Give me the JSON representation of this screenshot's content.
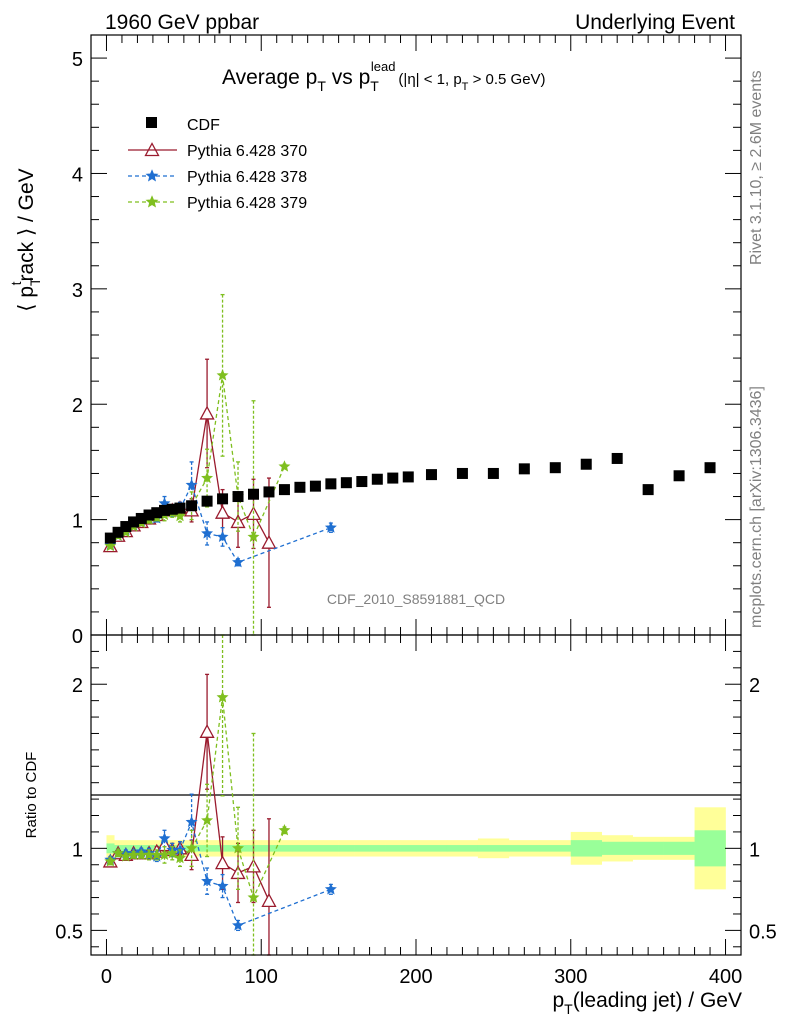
{
  "header": {
    "left": "1960 GeV ppbar",
    "right": "Underlying Event"
  },
  "side": {
    "rivet": "Rivet 3.1.10, ≥ 2.6M events",
    "mcplots": "mcplots.cern.ch [arXiv:1306.3436]"
  },
  "watermark": "CDF_2010_S8591881_QCD",
  "colors": {
    "cdf": "#000000",
    "p370": "#9a1b2e",
    "p378": "#1f6fd1",
    "p379": "#7fbf1f",
    "band_outer": "#ffff99",
    "band_inner": "#99ff99"
  },
  "chart_data": [
    {
      "type": "scatter",
      "title": "Average p_T vs p_T^lead (|η| < 1, p_T > 0.5 GeV)",
      "title_parts": {
        "pre": "Average p",
        "sub1": "T",
        "mid": " vs p",
        "sub2": "T",
        "sup2": "lead",
        "post_a": "(|η| < 1, p",
        "sub3": "T",
        "post_b": " > 0.5 GeV)"
      },
      "ylabel": "⟨ p_T^t rack ⟩ / GeV",
      "ylabel_parts": {
        "pre": "⟨ p",
        "sub": "T",
        "sup": "t",
        "post": "rack ⟩ / GeV"
      },
      "xlim": [
        -10,
        410
      ],
      "ylim": [
        0,
        5.2
      ],
      "yticks": [
        0,
        1,
        2,
        3,
        4,
        5
      ],
      "legend_position": "top-left",
      "series": [
        {
          "name": "CDF",
          "key": "cdf",
          "marker": "square",
          "x": [
            2.5,
            7.5,
            12.5,
            17.5,
            22.5,
            27.5,
            32.5,
            37.5,
            42.5,
            47.5,
            55,
            65,
            75,
            85,
            95,
            105,
            115,
            125,
            135,
            145,
            155,
            165,
            175,
            185,
            195,
            210,
            230,
            250,
            270,
            290,
            310,
            330,
            350,
            370,
            390
          ],
          "y": [
            0.84,
            0.89,
            0.94,
            0.98,
            1.01,
            1.04,
            1.06,
            1.08,
            1.09,
            1.1,
            1.12,
            1.16,
            1.18,
            1.2,
            1.22,
            1.24,
            1.26,
            1.28,
            1.29,
            1.31,
            1.32,
            1.33,
            1.35,
            1.36,
            1.37,
            1.39,
            1.4,
            1.4,
            1.44,
            1.45,
            1.48,
            1.53,
            1.26,
            1.38,
            1.45
          ]
        },
        {
          "name": "Pythia 6.428 370",
          "key": "p370",
          "marker": "triangle-open",
          "dashed": false,
          "x": [
            2.5,
            7.5,
            12.5,
            17.5,
            22.5,
            27.5,
            32.5,
            37.5,
            42.5,
            47.5,
            55,
            65,
            75,
            85,
            95,
            105
          ],
          "y": [
            0.77,
            0.86,
            0.9,
            0.95,
            0.98,
            1.01,
            1.04,
            1.1,
            1.08,
            1.1,
            1.08,
            1.92,
            1.06,
            0.98,
            1.05,
            0.8
          ],
          "err": [
            0.02,
            0.02,
            0.02,
            0.02,
            0.02,
            0.03,
            0.03,
            0.05,
            0.04,
            0.05,
            0.1,
            0.47,
            0.2,
            0.22,
            0.3,
            0.56
          ]
        },
        {
          "name": "Pythia 6.428 378",
          "key": "p378",
          "marker": "star",
          "dashed": true,
          "x": [
            2.5,
            7.5,
            12.5,
            17.5,
            22.5,
            27.5,
            32.5,
            37.5,
            42.5,
            47.5,
            55,
            65,
            75,
            85,
            145
          ],
          "y": [
            0.78,
            0.86,
            0.91,
            0.95,
            0.99,
            1.01,
            1.01,
            1.14,
            1.08,
            1.09,
            1.3,
            0.88,
            0.85,
            0.63,
            0.93
          ],
          "err": [
            0.02,
            0.02,
            0.02,
            0.02,
            0.02,
            0.03,
            0.03,
            0.06,
            0.05,
            0.06,
            0.2,
            0.1,
            0.08,
            0.03,
            0.04
          ]
        },
        {
          "name": "Pythia 6.428 379",
          "key": "p379",
          "marker": "star",
          "dashed": true,
          "x": [
            2.5,
            7.5,
            12.5,
            17.5,
            22.5,
            27.5,
            32.5,
            37.5,
            42.5,
            47.5,
            55,
            65,
            75,
            85,
            95,
            115
          ],
          "y": [
            0.77,
            0.86,
            0.89,
            0.94,
            0.97,
            1.0,
            1.02,
            1.04,
            1.06,
            1.03,
            1.12,
            1.36,
            2.25,
            1.2,
            0.85,
            1.46
          ],
          "err": [
            0.02,
            0.02,
            0.02,
            0.02,
            0.02,
            0.03,
            0.03,
            0.05,
            0.04,
            0.05,
            0.12,
            0.25,
            0.7,
            0.3,
            1.18,
            0.02
          ]
        }
      ]
    },
    {
      "type": "scatter",
      "xlabel": "p_T(leading jet) / GeV",
      "xlabel_parts": {
        "pre": "p",
        "sub": "T",
        "post": "(leading jet) / GeV"
      },
      "ylabel": "Ratio to CDF",
      "xlim": [
        -10,
        410
      ],
      "ylim": [
        0.35,
        2.3
      ],
      "xticks": [
        0,
        100,
        200,
        300,
        400
      ],
      "yticks": [
        0.5,
        1,
        2
      ],
      "bands": {
        "edges": [
          0,
          5,
          10,
          15,
          20,
          25,
          30,
          35,
          40,
          45,
          50,
          60,
          70,
          80,
          90,
          100,
          110,
          120,
          130,
          140,
          150,
          160,
          170,
          180,
          190,
          200,
          220,
          240,
          260,
          280,
          300,
          320,
          340,
          360,
          380,
          400
        ],
        "outer_lo": [
          0.92,
          0.95,
          0.95,
          0.95,
          0.95,
          0.95,
          0.95,
          0.95,
          0.95,
          0.95,
          0.95,
          0.95,
          0.95,
          0.95,
          0.95,
          0.95,
          0.95,
          0.95,
          0.95,
          0.95,
          0.95,
          0.95,
          0.95,
          0.95,
          0.95,
          0.95,
          0.95,
          0.94,
          0.95,
          0.95,
          0.9,
          0.92,
          0.93,
          0.93,
          0.75
        ],
        "outer_hi": [
          1.08,
          1.05,
          1.05,
          1.05,
          1.05,
          1.05,
          1.05,
          1.05,
          1.05,
          1.05,
          1.05,
          1.05,
          1.05,
          1.05,
          1.05,
          1.05,
          1.05,
          1.05,
          1.05,
          1.05,
          1.05,
          1.05,
          1.05,
          1.05,
          1.05,
          1.05,
          1.05,
          1.06,
          1.05,
          1.05,
          1.1,
          1.08,
          1.07,
          1.07,
          1.25
        ],
        "inner_lo": [
          0.97,
          0.98,
          0.98,
          0.98,
          0.98,
          0.98,
          0.98,
          0.98,
          0.98,
          0.98,
          0.98,
          0.98,
          0.98,
          0.98,
          0.98,
          0.98,
          0.98,
          0.98,
          0.98,
          0.98,
          0.98,
          0.98,
          0.98,
          0.98,
          0.98,
          0.98,
          0.98,
          0.98,
          0.98,
          0.98,
          0.95,
          0.96,
          0.96,
          0.96,
          0.89
        ],
        "inner_hi": [
          1.03,
          1.02,
          1.02,
          1.02,
          1.02,
          1.02,
          1.02,
          1.02,
          1.02,
          1.02,
          1.02,
          1.02,
          1.02,
          1.02,
          1.02,
          1.02,
          1.02,
          1.02,
          1.02,
          1.02,
          1.02,
          1.02,
          1.02,
          1.02,
          1.02,
          1.02,
          1.02,
          1.02,
          1.02,
          1.02,
          1.05,
          1.04,
          1.04,
          1.04,
          1.11
        ]
      },
      "series": [
        {
          "name": "Pythia 6.428 370",
          "key": "p370",
          "x": [
            2.5,
            7.5,
            12.5,
            17.5,
            22.5,
            27.5,
            32.5,
            37.5,
            42.5,
            47.5,
            55,
            65,
            75,
            85,
            95,
            105
          ],
          "y": [
            0.92,
            0.97,
            0.96,
            0.97,
            0.97,
            0.97,
            0.98,
            1.02,
            0.99,
            1.0,
            0.96,
            1.71,
            0.91,
            0.85,
            0.89,
            0.68
          ],
          "err": [
            0.02,
            0.02,
            0.02,
            0.02,
            0.02,
            0.03,
            0.03,
            0.04,
            0.04,
            0.04,
            0.09,
            0.35,
            0.16,
            0.18,
            0.22,
            0.5
          ]
        },
        {
          "name": "Pythia 6.428 378",
          "key": "p378",
          "x": [
            2.5,
            7.5,
            12.5,
            17.5,
            22.5,
            27.5,
            32.5,
            37.5,
            42.5,
            47.5,
            55,
            65,
            75,
            85,
            145
          ],
          "y": [
            0.93,
            0.97,
            0.97,
            0.97,
            0.98,
            0.97,
            0.95,
            1.06,
            0.99,
            0.99,
            1.16,
            0.8,
            0.77,
            0.53,
            0.75
          ],
          "err": [
            0.02,
            0.02,
            0.02,
            0.02,
            0.02,
            0.03,
            0.03,
            0.05,
            0.04,
            0.05,
            0.17,
            0.08,
            0.07,
            0.03,
            0.03
          ]
        },
        {
          "name": "Pythia 6.428 379",
          "key": "p379",
          "x": [
            2.5,
            7.5,
            12.5,
            17.5,
            22.5,
            27.5,
            32.5,
            37.5,
            42.5,
            47.5,
            55,
            65,
            75,
            85,
            95,
            115
          ],
          "y": [
            0.92,
            0.97,
            0.95,
            0.96,
            0.96,
            0.96,
            0.96,
            0.96,
            0.97,
            0.94,
            1.0,
            1.17,
            1.92,
            1.0,
            0.7,
            1.11
          ],
          "err": [
            0.02,
            0.02,
            0.02,
            0.02,
            0.02,
            0.03,
            0.03,
            0.05,
            0.04,
            0.05,
            0.11,
            0.22,
            0.6,
            0.25,
            1.0,
            0.02
          ]
        }
      ]
    }
  ]
}
